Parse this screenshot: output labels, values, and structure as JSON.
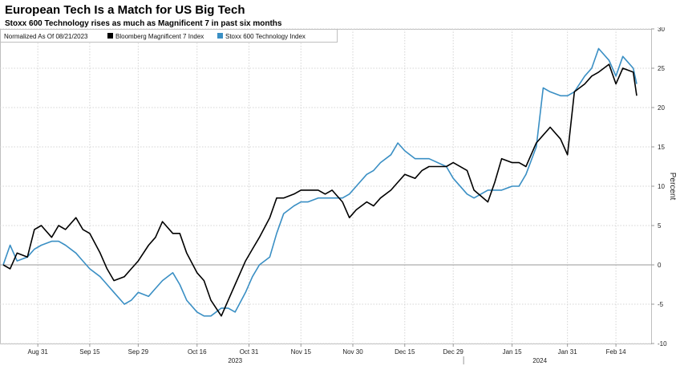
{
  "title": "European Tech Is a Match for US Big Tech",
  "subtitle": "Stoxx 600 Technology rises as much as Magnificent 7 in past six months",
  "chart_data": {
    "type": "line",
    "ylabel": "Percent",
    "ylim": [
      -10,
      30
    ],
    "yticks": [
      30,
      25,
      20,
      15,
      10,
      5,
      0,
      -5,
      -10
    ],
    "grid": true,
    "legend_position": "top-left",
    "legend_note": "Normalized As Of 08/21/2023",
    "x_tick_labels": [
      "Aug 31",
      "Sep 15",
      "Sep 29",
      "Oct 16",
      "Oct 31",
      "Nov 15",
      "Nov 30",
      "Dec 15",
      "Dec 29",
      "Jan 15",
      "Jan 31",
      "Feb 14"
    ],
    "x_year_labels": [
      "2023",
      "2024"
    ],
    "x": [
      "2023-08-21",
      "2023-08-23",
      "2023-08-25",
      "2023-08-28",
      "2023-08-30",
      "2023-09-01",
      "2023-09-04",
      "2023-09-06",
      "2023-09-08",
      "2023-09-11",
      "2023-09-13",
      "2023-09-15",
      "2023-09-18",
      "2023-09-20",
      "2023-09-22",
      "2023-09-25",
      "2023-09-27",
      "2023-09-29",
      "2023-10-02",
      "2023-10-04",
      "2023-10-06",
      "2023-10-09",
      "2023-10-11",
      "2023-10-13",
      "2023-10-16",
      "2023-10-18",
      "2023-10-20",
      "2023-10-23",
      "2023-10-25",
      "2023-10-27",
      "2023-10-30",
      "2023-11-01",
      "2023-11-03",
      "2023-11-06",
      "2023-11-08",
      "2023-11-10",
      "2023-11-13",
      "2023-11-15",
      "2023-11-17",
      "2023-11-20",
      "2023-11-22",
      "2023-11-24",
      "2023-11-27",
      "2023-11-29",
      "2023-12-01",
      "2023-12-04",
      "2023-12-06",
      "2023-12-08",
      "2023-12-11",
      "2023-12-13",
      "2023-12-15",
      "2023-12-18",
      "2023-12-20",
      "2023-12-22",
      "2023-12-27",
      "2023-12-29",
      "2024-01-02",
      "2024-01-04",
      "2024-01-08",
      "2024-01-10",
      "2024-01-12",
      "2024-01-15",
      "2024-01-17",
      "2024-01-19",
      "2024-01-22",
      "2024-01-24",
      "2024-01-26",
      "2024-01-29",
      "2024-01-31",
      "2024-02-02",
      "2024-02-05",
      "2024-02-07",
      "2024-02-09",
      "2024-02-12",
      "2024-02-14",
      "2024-02-16",
      "2024-02-19",
      "2024-02-20"
    ],
    "series": [
      {
        "name": "Bloomberg Magnificent 7 Index",
        "color": "#000000",
        "values": [
          0,
          -0.5,
          1.5,
          1,
          4.5,
          5,
          3.5,
          5,
          4.5,
          6,
          4.5,
          4,
          1.5,
          -0.5,
          -2,
          -1.5,
          -0.5,
          0.5,
          2.5,
          3.5,
          5.5,
          4,
          4,
          1.5,
          -1,
          -2,
          -4.5,
          -6.5,
          -4.5,
          -2.5,
          0.5,
          2,
          3.5,
          6,
          8.5,
          8.5,
          9,
          9.5,
          9.5,
          9.5,
          9,
          9.5,
          8,
          6,
          7,
          8,
          7.5,
          8.5,
          9.5,
          10.5,
          11.5,
          11,
          12,
          12.5,
          12.5,
          13,
          12,
          9.5,
          8,
          10.5,
          13.5,
          13,
          13,
          12.5,
          15.5,
          16.5,
          17.5,
          16,
          14,
          22,
          23,
          24,
          24.5,
          25.5,
          23,
          25,
          24.5,
          21.5
        ]
      },
      {
        "name": "Stoxx 600 Technology Index",
        "color": "#3a8fc4",
        "values": [
          0,
          2.5,
          0.5,
          1,
          2,
          2.5,
          3,
          3,
          2.5,
          1.5,
          0.5,
          -0.5,
          -1.5,
          -2.5,
          -3.5,
          -5,
          -4.5,
          -3.5,
          -4,
          -3,
          -2,
          -1,
          -2.5,
          -4.5,
          -6,
          -6.5,
          -6.5,
          -5.5,
          -5.5,
          -6,
          -3.5,
          -1.5,
          0,
          1,
          4,
          6.5,
          7.5,
          8,
          8,
          8.5,
          8.5,
          8.5,
          8.5,
          9,
          10,
          11.5,
          12,
          13,
          14,
          15.5,
          14.5,
          13.5,
          13.5,
          13.5,
          12.5,
          11,
          9,
          8.5,
          9.5,
          9.5,
          9.5,
          10,
          10,
          11.5,
          15,
          22.5,
          22,
          21.5,
          21.5,
          22,
          24,
          25,
          27.5,
          26,
          24,
          26.5,
          25,
          23
        ]
      }
    ]
  }
}
